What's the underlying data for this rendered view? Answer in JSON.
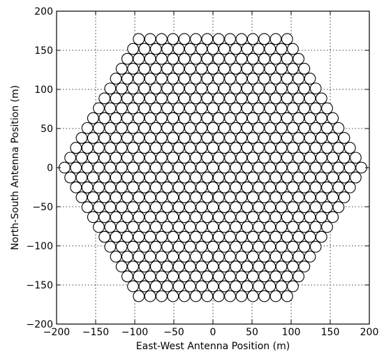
{
  "chart_data": {
    "type": "scatter",
    "title": "",
    "xlabel": "East-West Antenna Position (m)",
    "ylabel": "North-South Antenna Position (m)",
    "xlim": [
      -200,
      200
    ],
    "ylim": [
      -200,
      200
    ],
    "xticks": [
      -200,
      -150,
      -100,
      -50,
      0,
      50,
      100,
      150,
      200
    ],
    "yticks": [
      -200,
      -150,
      -100,
      -50,
      0,
      50,
      100,
      150,
      200
    ],
    "xtick_labels": [
      "−200",
      "−150",
      "−100",
      "−50",
      "0",
      "50",
      "100",
      "150",
      "200"
    ],
    "ytick_labels": [
      "−200",
      "−150",
      "−100",
      "−50",
      "0",
      "50",
      "100",
      "150",
      "200"
    ],
    "grid": true,
    "marker": "open-circle",
    "antenna_diameter_m": 14,
    "layout": "hexagonal grid",
    "hex_rings": 13,
    "spacing_m": 14.6,
    "points": []
  }
}
